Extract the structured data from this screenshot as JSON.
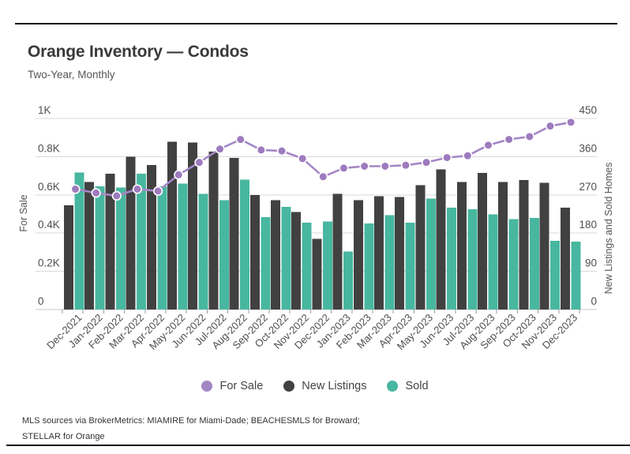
{
  "header": {
    "title": "Orange Inventory — Condos",
    "subtitle": "Two-Year, Monthly"
  },
  "legend": {
    "items": [
      {
        "label": "For Sale",
        "color": "#a287c4"
      },
      {
        "label": "New Listings",
        "color": "#414141"
      },
      {
        "label": "Sold",
        "color": "#48b7a0"
      }
    ]
  },
  "footer": {
    "line1": "MLS sources via BrokerMetrics: MIAMIRE for Miami-Dade; BEACHESMLS for Broward;",
    "line2": "STELLAR for Orange"
  },
  "chart_data": {
    "type": "combo-line-grouped-bar",
    "title": "Orange Inventory — Condos",
    "subtitle": "Two-Year, Monthly",
    "grid": true,
    "legend_position": "bottom",
    "categories": [
      "Dec-2021",
      "Jan-2022",
      "Feb-2022",
      "Mar-2022",
      "Apr-2022",
      "May-2022",
      "Jun-2022",
      "Jul-2022",
      "Aug-2022",
      "Sep-2022",
      "Oct-2022",
      "Nov-2022",
      "Dec-2022",
      "Jan-2023",
      "Feb-2023",
      "Mar-2023",
      "Apr-2023",
      "May-2023",
      "Jun-2023",
      "Jul-2023",
      "Aug-2023",
      "Sep-2023",
      "Oct-2023",
      "Nov-2023",
      "Dec-2023"
    ],
    "series": [
      {
        "name": "For Sale",
        "type": "line",
        "axis": "left",
        "color": "#a287c4",
        "line_color": "#a487c6",
        "point_color": "#9d7bbe",
        "values": [
          630,
          610,
          595,
          630,
          620,
          705,
          770,
          840,
          890,
          835,
          830,
          790,
          695,
          740,
          750,
          750,
          755,
          770,
          795,
          805,
          860,
          890,
          905,
          960,
          980
        ]
      },
      {
        "name": "New Listings",
        "type": "bar",
        "axis": "right",
        "color": "#414141",
        "values": [
          245,
          300,
          320,
          360,
          340,
          395,
          393,
          372,
          357,
          270,
          258,
          230,
          166,
          272,
          258,
          267,
          265,
          293,
          330,
          300,
          322,
          300,
          305,
          298,
          240
        ]
      },
      {
        "name": "Sold",
        "type": "bar",
        "axis": "right",
        "color": "#48b7a0",
        "values": [
          323,
          290,
          287,
          320,
          290,
          297,
          272,
          258,
          306,
          218,
          242,
          205,
          207,
          137,
          203,
          222,
          205,
          261,
          240,
          236,
          224,
          213,
          216,
          162,
          160
        ]
      }
    ],
    "left_axis": {
      "title": "For Sale",
      "range": [
        0,
        1000
      ],
      "ticks": [
        "0",
        "0.2K",
        "0.4K",
        "0.6K",
        "0.8K",
        "1K"
      ]
    },
    "right_axis": {
      "title": "New Listings and Sold Homes",
      "range": [
        0,
        450
      ],
      "ticks": [
        "0",
        "90",
        "180",
        "270",
        "360",
        "450"
      ]
    }
  }
}
